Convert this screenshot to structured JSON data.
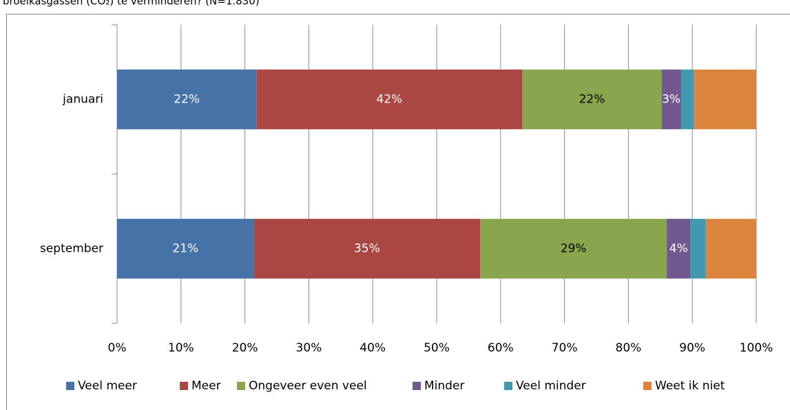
{
  "chart_data": {
    "type": "stacked_barh",
    "title": "broeikasgassen (CO₂) te verminderen? (N=1.830)",
    "categories": [
      "januari",
      "september"
    ],
    "series": [
      {
        "name": "Veel meer",
        "color": "#4572a7",
        "label_color": "#ffffff",
        "values": [
          21.8,
          21.4
        ],
        "value_labels": [
          "22%",
          "21%"
        ]
      },
      {
        "name": "Meer",
        "color": "#aa4643",
        "label_color": "#ffffff",
        "values": [
          41.6,
          35.4
        ],
        "value_labels": [
          "42%",
          "35%"
        ]
      },
      {
        "name": "Ongeveer even veel",
        "color": "#89a54e",
        "label_color": "#000000",
        "values": [
          21.8,
          29.2
        ],
        "value_labels": [
          "22%",
          "29%"
        ]
      },
      {
        "name": "Minder",
        "color": "#71588f",
        "label_color": "#ffffff",
        "values": [
          3.0,
          3.7
        ],
        "value_labels": [
          "3%",
          "4%"
        ]
      },
      {
        "name": "Veel minder",
        "color": "#4198af",
        "label_color": "#ffffff",
        "values": [
          2.0,
          2.4
        ],
        "value_labels": [
          null,
          null
        ]
      },
      {
        "name": "Weet ik niet",
        "color": "#db843d",
        "label_color": "#ffffff",
        "values": [
          9.8,
          7.9
        ],
        "value_labels": [
          null,
          null
        ]
      }
    ],
    "xlim": [
      0,
      100
    ],
    "xticks": [
      {
        "value": 0,
        "label": "0%"
      },
      {
        "value": 10,
        "label": "10%"
      },
      {
        "value": 20,
        "label": "20%"
      },
      {
        "value": 30,
        "label": "30%"
      },
      {
        "value": 40,
        "label": "40%"
      },
      {
        "value": 50,
        "label": "50%"
      },
      {
        "value": 60,
        "label": "60%"
      },
      {
        "value": 70,
        "label": "70%"
      },
      {
        "value": 80,
        "label": "80%"
      },
      {
        "value": 90,
        "label": "90%"
      },
      {
        "value": 100,
        "label": "100%"
      }
    ],
    "grid": true,
    "legend": "bottom"
  }
}
